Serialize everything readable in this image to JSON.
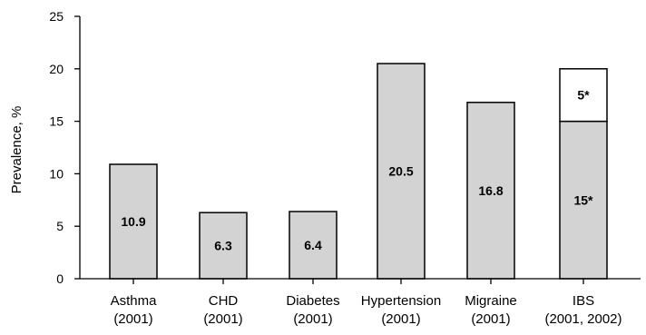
{
  "chart_data": {
    "type": "bar",
    "ylabel": "Prevalence, %",
    "xlabel": "",
    "title": "",
    "ylim": [
      0,
      25
    ],
    "yticks": [
      0,
      5,
      10,
      15,
      20,
      25
    ],
    "grid": false,
    "legend": "none",
    "categories": [
      {
        "name": "Asthma",
        "year": "(2001)"
      },
      {
        "name": "CHD",
        "year": "(2001)"
      },
      {
        "name": "Diabetes",
        "year": "(2001)"
      },
      {
        "name": "Hypertension",
        "year": "(2001)"
      },
      {
        "name": "Migraine",
        "year": "(2001)"
      },
      {
        "name": "IBS",
        "year": "(2001, 2002)"
      }
    ],
    "bars": [
      {
        "segments": [
          {
            "value": 10.9,
            "label": "10.9",
            "fill": "#d3d3d3"
          }
        ]
      },
      {
        "segments": [
          {
            "value": 6.3,
            "label": "6.3",
            "fill": "#d3d3d3"
          }
        ]
      },
      {
        "segments": [
          {
            "value": 6.4,
            "label": "6.4",
            "fill": "#d3d3d3"
          }
        ]
      },
      {
        "segments": [
          {
            "value": 20.5,
            "label": "20.5",
            "fill": "#d3d3d3"
          }
        ]
      },
      {
        "segments": [
          {
            "value": 16.8,
            "label": "16.8",
            "fill": "#d3d3d3"
          }
        ]
      },
      {
        "segments": [
          {
            "value": 15,
            "label": "15*",
            "fill": "#d3d3d3"
          },
          {
            "value": 5,
            "label": "5*",
            "fill": "#ffffff"
          }
        ]
      }
    ]
  }
}
